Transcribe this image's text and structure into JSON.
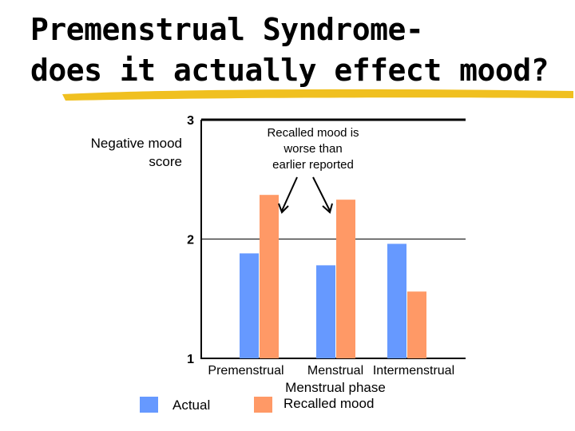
{
  "slide": {
    "title_line1": "Premenstrual Syndrome-",
    "title_line2": "does it actually effect mood?",
    "underline_color": "#f0c020"
  },
  "chart_data": {
    "type": "bar",
    "title": "",
    "xlabel": "Menstrual phase",
    "ylabel_line1": "Negative mood",
    "ylabel_line2": "score",
    "ylim": [
      1,
      3
    ],
    "yticks": [
      1,
      2,
      3
    ],
    "gridlines": [
      2,
      3
    ],
    "categories": [
      "Premenstrual",
      "Menstrual",
      "Intermenstrual"
    ],
    "series": [
      {
        "name": "Actual",
        "color": "#6699ff",
        "values": [
          1.88,
          1.78,
          1.96
        ]
      },
      {
        "name": "Recalled mood",
        "color": "#ff9966",
        "values": [
          2.37,
          2.33,
          1.56
        ]
      }
    ],
    "annotation": {
      "line1": "Recalled mood is",
      "line2": "worse than",
      "line3": "earlier reported"
    },
    "legend_position": "bottom"
  }
}
